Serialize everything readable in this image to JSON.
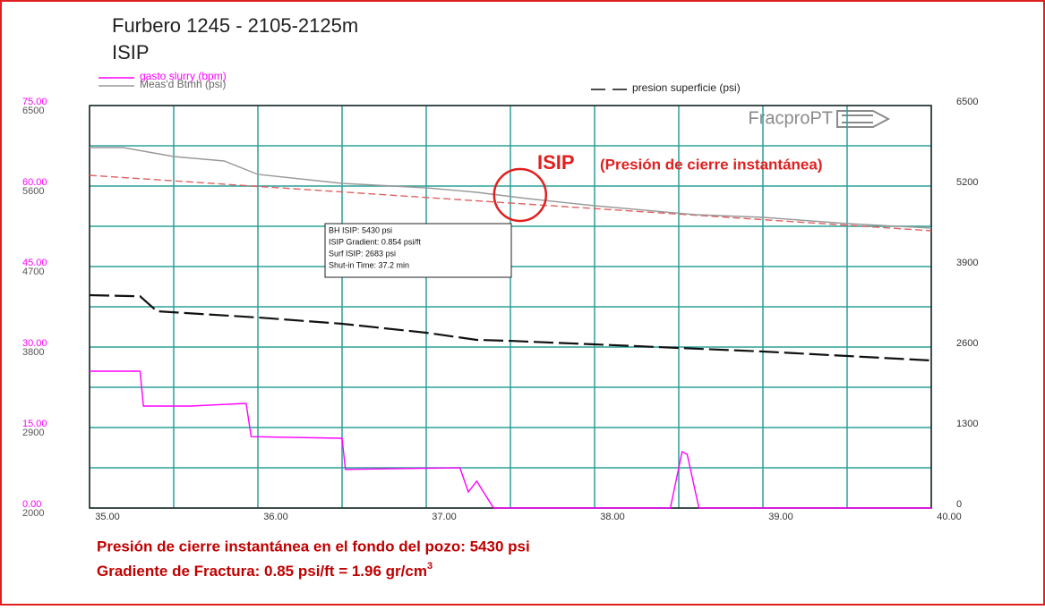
{
  "chart_data": {
    "type": "line",
    "title": "Furbero 1245 - 2105-2125m",
    "subtitle": "ISIP",
    "logo": "FracproPT",
    "xlim": [
      35,
      40
    ],
    "xticks": [
      {
        "value": 35,
        "label": "35.00"
      },
      {
        "value": 36,
        "label": "36.00"
      },
      {
        "value": 37,
        "label": "37.00"
      },
      {
        "value": 38,
        "label": "38.00"
      },
      {
        "value": 39,
        "label": "39.00"
      },
      {
        "value": 40,
        "label": "40.00"
      }
    ],
    "xgrid_minor": [
      35.5,
      36.5,
      37.5,
      38.5,
      39.5
    ],
    "ylim": [
      0,
      75
    ],
    "yticks": [
      {
        "value": 0,
        "label": "0.00"
      },
      {
        "value": 15,
        "label": "15.00"
      },
      {
        "value": 30,
        "label": "30.00"
      },
      {
        "value": 45,
        "label": "45.00"
      },
      {
        "value": 60,
        "label": "60.00"
      },
      {
        "value": 75,
        "label": "75.00"
      }
    ],
    "ygrid_minor": [
      7.5,
      22.5,
      37.5,
      52.5,
      67.5
    ],
    "y2lim": [
      2000,
      6500
    ],
    "y2ticks": [
      2000,
      2900,
      3800,
      4700,
      5600,
      6500
    ],
    "y3lim": [
      0,
      6500
    ],
    "y3ticks": [
      0,
      1300,
      2600,
      3900,
      5200,
      6500
    ],
    "grid": true,
    "series": [
      {
        "name": "gasto slurry (bpm)",
        "color": "#ff00ff",
        "axis": "y",
        "x": [
          35,
          35.3,
          35.32,
          35.6,
          35.93,
          35.96,
          36.5,
          36.52,
          37.2,
          37.25,
          37.3,
          37.4,
          38.45,
          38.52,
          38.55,
          38.62,
          40
        ],
        "values": [
          25.5,
          25.5,
          19,
          19,
          19.5,
          13.3,
          13,
          7.2,
          7.5,
          3,
          5,
          0,
          0,
          10.5,
          10,
          0,
          0
        ]
      },
      {
        "name": "Meas'd Btmh (psi)",
        "color": "#999999",
        "axis": "y2",
        "x": [
          35,
          35.2,
          35.5,
          35.8,
          36,
          36.5,
          37,
          37.3,
          37.6,
          38,
          38.6,
          39,
          39.5,
          40
        ],
        "values": [
          6030,
          6030,
          5930,
          5880,
          5730,
          5630,
          5580,
          5530,
          5460,
          5380,
          5280,
          5250,
          5180,
          5130
        ]
      },
      {
        "name": "presion superficie (psi)",
        "color": "#111111",
        "axis": "y3",
        "dashed": true,
        "x": [
          35,
          35.3,
          35.4,
          36,
          36.5,
          37,
          37.3,
          37.5,
          38,
          39,
          40
        ],
        "values": [
          3438,
          3420,
          3178,
          3077,
          2976,
          2831,
          2716,
          2700,
          2643,
          2528,
          2383
        ]
      }
    ],
    "fit_line": {
      "color": "#e06060",
      "axis": "y2",
      "x": [
        35,
        40
      ],
      "values": [
        5720,
        5100
      ]
    },
    "annotation": {
      "title": "ISIP",
      "subtitle": "(Presión de cierre instantánea)",
      "point": {
        "x": 37.6,
        "y": 5430
      }
    },
    "info_box": [
      "BH ISIP: 5430 psi",
      "ISIP Gradient: 0.854 psi/ft",
      "Surf ISIP: 2683 psi",
      "Shut-in Time: 37.2 min"
    ]
  },
  "footer": {
    "line1": "Presión de cierre instantánea en el fondo del pozo: 5430 psi",
    "line2": "Gradiente de Fractura: 0.85 psi/ft = 1.96 gr/cm",
    "line2_sup": "3"
  }
}
